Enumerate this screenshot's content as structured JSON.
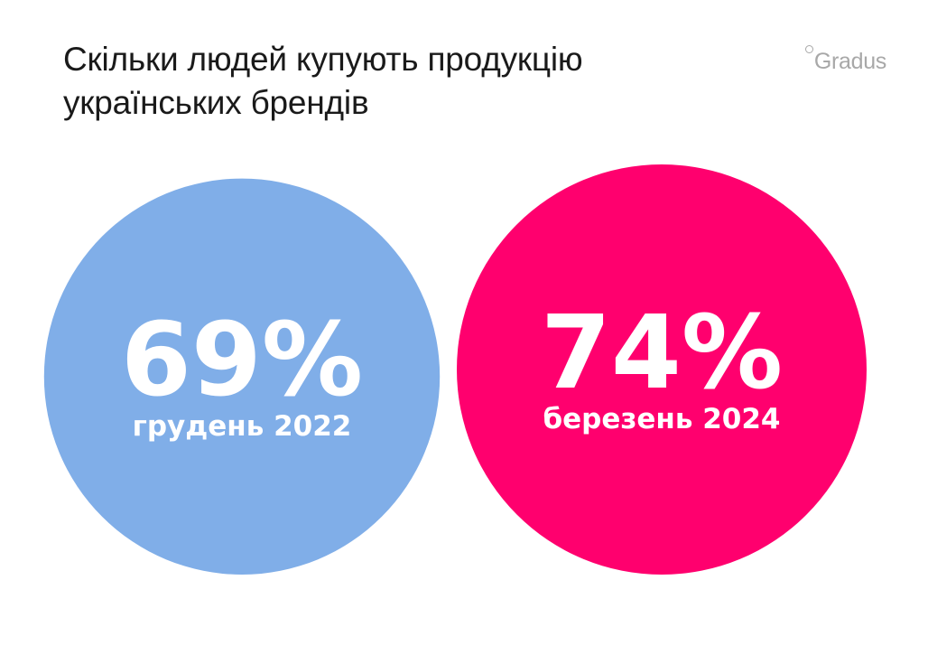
{
  "title_lines": [
    "Скільки людей купують продукцію",
    "українських брендів"
  ],
  "logo": {
    "text": "Gradus",
    "icon": "ring-icon"
  },
  "colors": {
    "dec_2022": "#80aee8",
    "mar_2024": "#ff006e",
    "text": "#1a1a1a",
    "logo": "#a8a8a8"
  },
  "chart_data": {
    "type": "bubble",
    "series": [
      {
        "label": "грудень 2022",
        "value": 69,
        "value_text": "69%",
        "color": "#80aee8"
      },
      {
        "label": "березень 2024",
        "value": 74,
        "value_text": "74%",
        "color": "#ff006e"
      }
    ]
  }
}
